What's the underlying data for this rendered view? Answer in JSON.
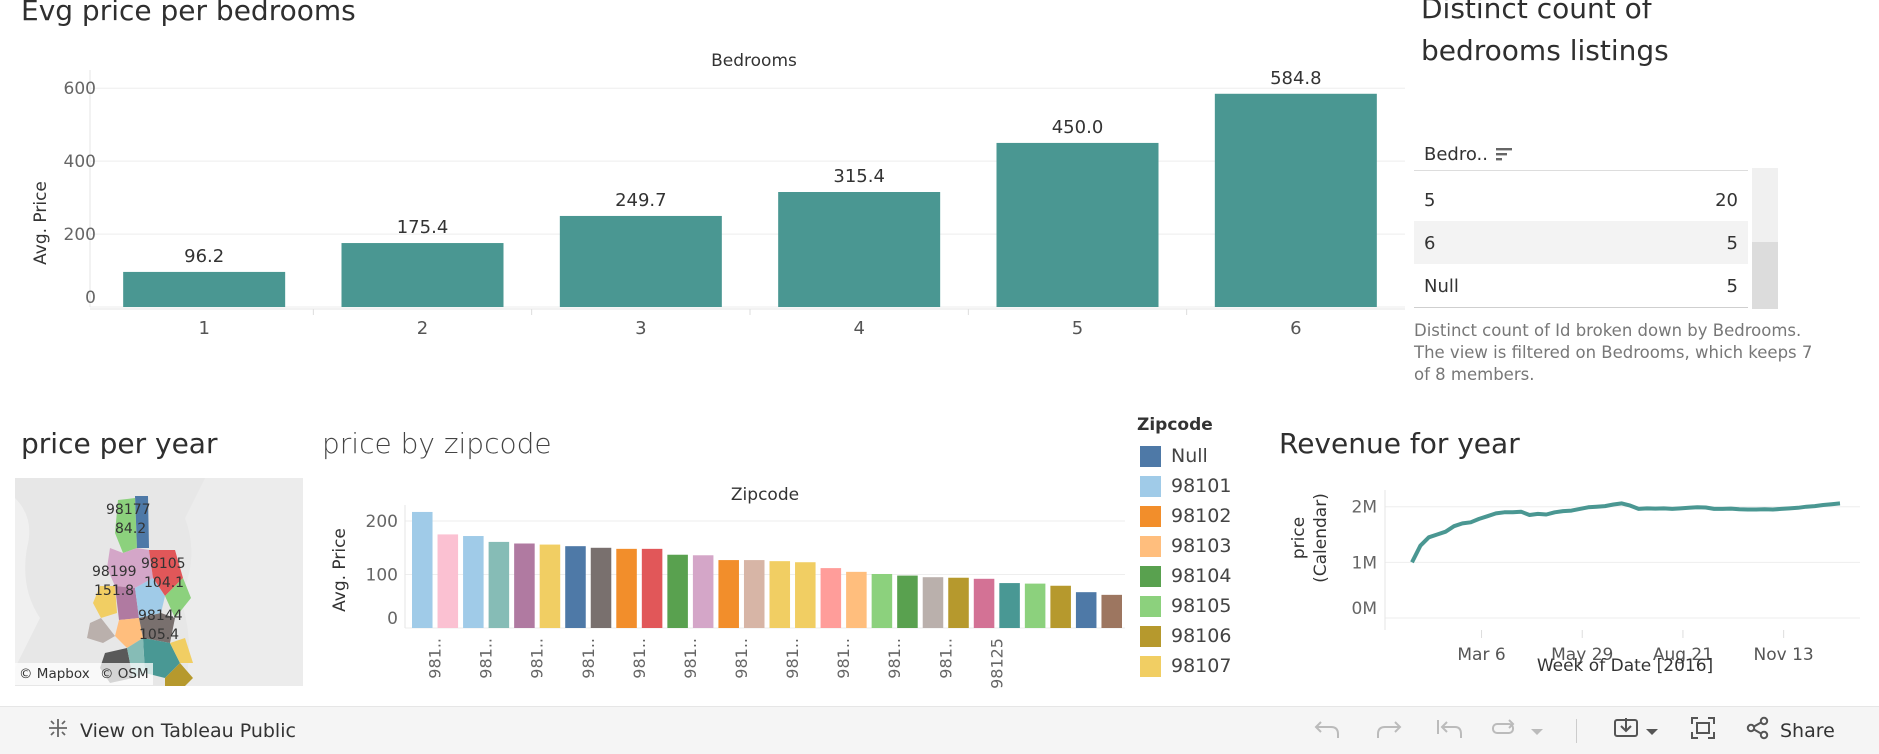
{
  "bedrooms_chart": {
    "title": "Evg price per bedrooms",
    "header": "Bedrooms",
    "y_label": "Avg. Price",
    "y_ticks": [
      "600",
      "400",
      "200",
      "0"
    ],
    "bar_color": "#4a9792",
    "chart_data": {
      "type": "bar",
      "categories": [
        "1",
        "2",
        "3",
        "4",
        "5",
        "6"
      ],
      "values": [
        96.2,
        175.4,
        249.7,
        315.4,
        450.0,
        584.8
      ],
      "labels": [
        "96.2",
        "175.4",
        "249.7",
        "315.4",
        "450.0",
        "584.8"
      ],
      "title": "Bedrooms",
      "ylabel": "Avg. Price",
      "ylim": [
        0,
        650
      ]
    }
  },
  "listings_panel": {
    "title_line1": "Distinct count of",
    "title_line2": "bedrooms listings",
    "column_header": "Bedro..",
    "rows": [
      {
        "label": "5",
        "value": "20"
      },
      {
        "label": "6",
        "value": "5"
      },
      {
        "label": "Null",
        "value": "5"
      }
    ],
    "caption": "Distinct count of Id broken down by Bedrooms. The view is filtered on Bedrooms, which keeps 7 of 8 members."
  },
  "map_panel": {
    "title": "price per year",
    "labels": [
      "98177",
      "84.2",
      "98199",
      "151.8",
      "98105",
      "104.1",
      "98144",
      "105.4"
    ],
    "attribution_mapbox": "© Mapbox",
    "attribution_osm": "© OSM"
  },
  "zipcode_chart": {
    "title": "price by zipcode",
    "header": "Zipcode",
    "y_label": "Avg. Price",
    "y_ticks": [
      "200",
      "100",
      "0"
    ],
    "x_labels": [
      "981..",
      "981..",
      "981..",
      "981..",
      "981..",
      "981..",
      "981..",
      "981..",
      "981..",
      "981..",
      "981..",
      "98125"
    ],
    "chart_data": {
      "type": "bar",
      "title": "Zipcode",
      "ylabel": "Avg. Price",
      "ylim": [
        0,
        230
      ],
      "values": [
        217,
        175,
        172,
        161,
        158,
        156,
        153,
        150,
        148,
        148,
        137,
        136,
        127,
        127,
        125,
        123,
        112,
        105,
        101,
        98,
        95,
        94,
        92,
        84,
        83,
        79,
        67,
        62
      ],
      "colors": [
        "#a0cbe8",
        "#fbc1d2",
        "#a0cbe8",
        "#86bcb6",
        "#b07aa1",
        "#f1ce63",
        "#4e79a7",
        "#79706e",
        "#f28e2b",
        "#e15759",
        "#59a14f",
        "#d4a6c8",
        "#f28e2b",
        "#d7b5a6",
        "#f1ce63",
        "#f1ce63",
        "#ff9d9a",
        "#ffbe7d",
        "#8cd17d",
        "#59a14f",
        "#bab0ac",
        "#b6992d",
        "#d37295",
        "#499894",
        "#8cd17d",
        "#b6992d",
        "#4e79a7",
        "#9d7660"
      ]
    }
  },
  "zipcode_legend": {
    "title": "Zipcode",
    "items": [
      {
        "label": "Null",
        "color": "#4e79a7"
      },
      {
        "label": "98101",
        "color": "#a0cbe8"
      },
      {
        "label": "98102",
        "color": "#f28e2b"
      },
      {
        "label": "98103",
        "color": "#ffbe7d"
      },
      {
        "label": "98104",
        "color": "#59a14f"
      },
      {
        "label": "98105",
        "color": "#8cd17d"
      },
      {
        "label": "98106",
        "color": "#b6992d"
      },
      {
        "label": "98107",
        "color": "#f1ce63"
      }
    ]
  },
  "revenue_chart": {
    "title": "Revenue for year",
    "y_label_line1": "price",
    "y_label_line2": "(Calendar)",
    "y_ticks": [
      "2M",
      "1M",
      "0M"
    ],
    "x_ticks": [
      "Mar 6",
      "May 29",
      "Aug 21",
      "Nov 13"
    ],
    "x_label": "Week of Date [2016]",
    "line_color": "#4a9792",
    "chart_data": {
      "type": "line",
      "xlabel": "Week of Date [2016]",
      "ylabel": "price (Calendar)",
      "ylim": [
        0,
        2300000
      ],
      "x": [
        "Jan 4",
        "Jan 11",
        "Jan 18",
        "Jan 25",
        "Feb 1",
        "Feb 8",
        "Feb 15",
        "Feb 22",
        "Mar 1",
        "Mar 8",
        "Mar 15",
        "Mar 22",
        "Mar 29",
        "Apr 5",
        "Apr 12",
        "Apr 19",
        "Apr 26",
        "May 3",
        "May 10",
        "May 17",
        "May 24",
        "May 31",
        "Jun 7",
        "Jun 14",
        "Jun 21",
        "Jun 28",
        "Jul 5",
        "Jul 12",
        "Jul 19",
        "Jul 26",
        "Aug 2",
        "Aug 9",
        "Aug 16",
        "Aug 23",
        "Aug 30",
        "Sep 6",
        "Sep 13",
        "Sep 20",
        "Sep 27",
        "Oct 4",
        "Oct 11",
        "Oct 18",
        "Oct 25",
        "Nov 1",
        "Nov 8",
        "Nov 15",
        "Nov 22",
        "Nov 29",
        "Dec 6",
        "Dec 13",
        "Dec 20",
        "Dec 27"
      ],
      "values": [
        1000000,
        1300000,
        1450000,
        1500000,
        1550000,
        1650000,
        1700000,
        1720000,
        1780000,
        1830000,
        1880000,
        1900000,
        1900000,
        1910000,
        1850000,
        1870000,
        1860000,
        1900000,
        1920000,
        1930000,
        1960000,
        1990000,
        2000000,
        2010000,
        2040000,
        2060000,
        2020000,
        1960000,
        1970000,
        1965000,
        1970000,
        1960000,
        1970000,
        1980000,
        1990000,
        1985000,
        1960000,
        1960000,
        1965000,
        1955000,
        1950000,
        1950000,
        1955000,
        1950000,
        1960000,
        1970000,
        1980000,
        2000000,
        2010000,
        2030000,
        2045000,
        2060000
      ]
    }
  },
  "toolbar": {
    "view_on_tableau": "View on Tableau Public",
    "share": "Share"
  }
}
